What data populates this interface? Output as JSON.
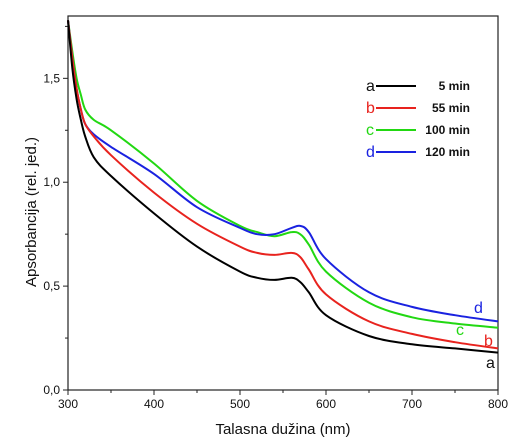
{
  "chart_data": {
    "type": "line",
    "xlabel": "Talasna dužina (nm)",
    "ylabel": "Apsorbancija (rel. jed.)",
    "xlim": [
      300,
      800
    ],
    "ylim": [
      0,
      1.8
    ],
    "x_ticks": [
      300,
      400,
      500,
      600,
      700,
      800
    ],
    "y_ticks": [
      0,
      0.5,
      1.0,
      1.5
    ],
    "x_tick_labels": [
      "300",
      "400",
      "500",
      "600",
      "700",
      "800"
    ],
    "y_tick_labels": [
      "0,0",
      "0,5",
      "1,0",
      "1,5"
    ],
    "legend_position": "top-right",
    "grid": false,
    "series": [
      {
        "name": "5 min",
        "letter": "a",
        "color": "#000000",
        "x": [
          300,
          305,
          310,
          315,
          320,
          330,
          350,
          400,
          450,
          500,
          520,
          540,
          560,
          570,
          580,
          600,
          650,
          700,
          750,
          800
        ],
        "y": [
          1.78,
          1.55,
          1.4,
          1.3,
          1.22,
          1.12,
          1.03,
          0.85,
          0.69,
          0.57,
          0.54,
          0.53,
          0.54,
          0.52,
          0.47,
          0.36,
          0.26,
          0.22,
          0.2,
          0.18
        ]
      },
      {
        "name": "55 min",
        "letter": "b",
        "color": "#e8231e",
        "x": [
          300,
          305,
          310,
          315,
          320,
          330,
          350,
          400,
          450,
          500,
          520,
          540,
          560,
          570,
          580,
          600,
          650,
          700,
          750,
          800
        ],
        "y": [
          1.78,
          1.6,
          1.45,
          1.35,
          1.28,
          1.22,
          1.13,
          0.95,
          0.8,
          0.69,
          0.66,
          0.65,
          0.66,
          0.64,
          0.58,
          0.46,
          0.33,
          0.27,
          0.23,
          0.2
        ]
      },
      {
        "name": "100 min",
        "letter": "c",
        "color": "#22d812",
        "x": [
          300,
          305,
          310,
          315,
          320,
          330,
          350,
          400,
          450,
          500,
          520,
          540,
          560,
          570,
          580,
          600,
          650,
          700,
          750,
          800
        ],
        "y": [
          1.78,
          1.63,
          1.5,
          1.42,
          1.35,
          1.3,
          1.25,
          1.09,
          0.91,
          0.79,
          0.76,
          0.74,
          0.76,
          0.75,
          0.7,
          0.57,
          0.42,
          0.35,
          0.32,
          0.3
        ]
      },
      {
        "name": "120 min",
        "letter": "d",
        "color": "#1a22e0",
        "x": [
          300,
          305,
          310,
          315,
          320,
          330,
          350,
          400,
          450,
          500,
          520,
          540,
          560,
          570,
          580,
          600,
          650,
          700,
          750,
          800
        ],
        "y": [
          1.78,
          1.6,
          1.45,
          1.35,
          1.28,
          1.23,
          1.17,
          1.04,
          0.88,
          0.78,
          0.75,
          0.75,
          0.78,
          0.79,
          0.76,
          0.63,
          0.47,
          0.4,
          0.36,
          0.33
        ]
      }
    ]
  }
}
